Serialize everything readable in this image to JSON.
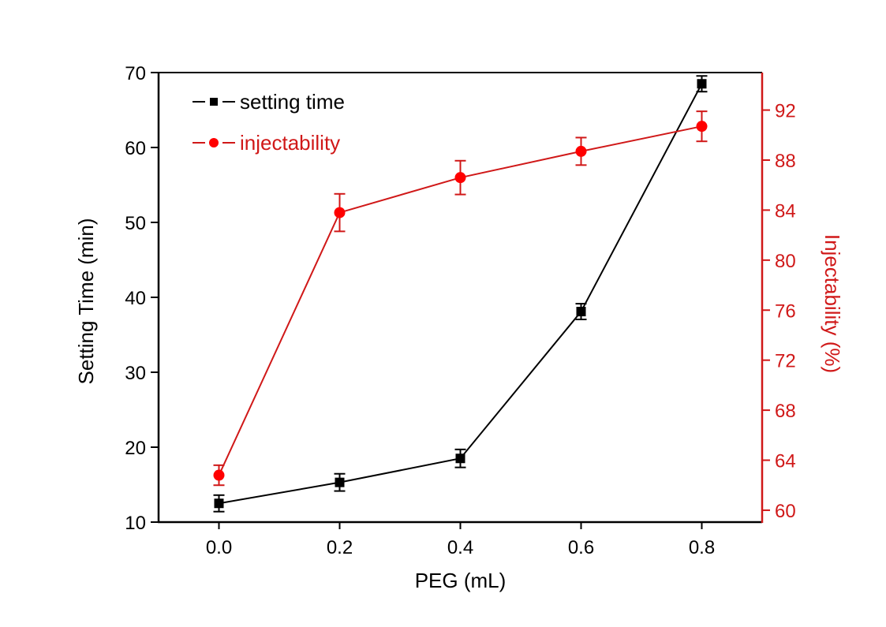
{
  "chart_data": {
    "type": "line",
    "title": "",
    "xlabel": "PEG (mL)",
    "ylabel": "Setting Time (min)",
    "y2label": "Injectability (%)",
    "xlim": [
      -0.1,
      0.9
    ],
    "ylim": [
      10,
      70
    ],
    "y2lim": [
      59.05,
      95.0
    ],
    "x": [
      0.0,
      0.2,
      0.4,
      0.6,
      0.8
    ],
    "xticks": [
      0.0,
      0.2,
      0.4,
      0.6,
      0.8
    ],
    "xtick_labels": [
      "0.0",
      "0.2",
      "0.4",
      "0.6",
      "0.8"
    ],
    "yticks": [
      10,
      20,
      30,
      40,
      50,
      60,
      70
    ],
    "ytick_labels": [
      "10",
      "20",
      "30",
      "40",
      "50",
      "60",
      "70"
    ],
    "y2ticks": [
      60,
      64,
      68,
      72,
      76,
      80,
      84,
      88,
      92
    ],
    "y2tick_labels": [
      "60",
      "64",
      "68",
      "72",
      "76",
      "80",
      "84",
      "88",
      "92"
    ],
    "grid": false,
    "legend_position": "top-left",
    "colors": {
      "setting_time": "#000000",
      "injectability_line": "#d01818",
      "injectability_marker": "#ff0000",
      "right_axis": "#d01818"
    },
    "series": [
      {
        "name": "setting time",
        "axis": "left",
        "marker": "square",
        "values": [
          12.5,
          15.3,
          18.5,
          38.1,
          68.5
        ],
        "errors": [
          1.1,
          1.15,
          1.2,
          1.05,
          1.05
        ]
      },
      {
        "name": "injectability",
        "axis": "right",
        "marker": "circle",
        "values": [
          62.8,
          83.8,
          86.6,
          88.7,
          90.7
        ],
        "errors": [
          0.8,
          1.5,
          1.35,
          1.1,
          1.2
        ]
      }
    ]
  }
}
